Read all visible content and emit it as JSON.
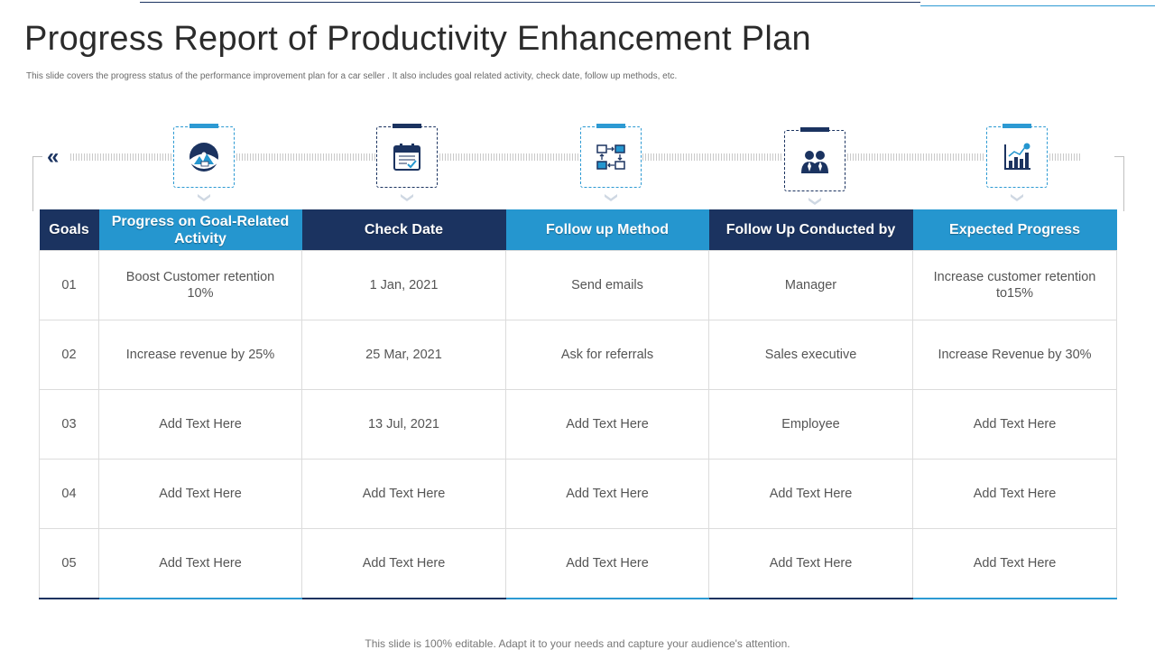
{
  "page": {
    "title": "Progress Report of Productivity Enhancement Plan",
    "subtitle": "This slide covers the progress status of the performance improvement plan  for a car seller . It also includes  goal related activity, check date, follow up methods, etc.",
    "footer": "This slide is 100% editable. Adapt it to your needs and capture your audience's attention."
  },
  "colors": {
    "navy": "#1b3360",
    "blue": "#2596cf"
  },
  "timeline": {
    "icons": [
      "goal-mountain-icon",
      "calendar-icon",
      "flow-diagram-icon",
      "team-icon",
      "growth-chart-icon"
    ]
  },
  "table": {
    "headers": [
      "Goals",
      "Progress on Goal-Related Activity",
      "Check Date",
      "Follow up Method",
      "Follow Up Conducted by",
      "Expected Progress"
    ],
    "rows": [
      [
        "01",
        "Boost Customer retention 10%",
        "1 Jan, 2021",
        "Send emails",
        "Manager",
        "Increase customer retention to15%"
      ],
      [
        "02",
        "Increase revenue by 25%",
        "25 Mar, 2021",
        "Ask for referrals",
        "Sales executive",
        "Increase Revenue by 30%"
      ],
      [
        "03",
        "Add Text Here",
        "13 Jul, 2021",
        "Add Text Here",
        "Employee",
        "Add Text Here"
      ],
      [
        "04",
        "Add Text Here",
        "Add Text Here",
        "Add Text Here",
        "Add Text Here",
        "Add Text Here"
      ],
      [
        "05",
        "Add Text Here",
        "Add Text Here",
        "Add Text Here",
        "Add Text Here",
        "Add Text Here"
      ]
    ]
  }
}
